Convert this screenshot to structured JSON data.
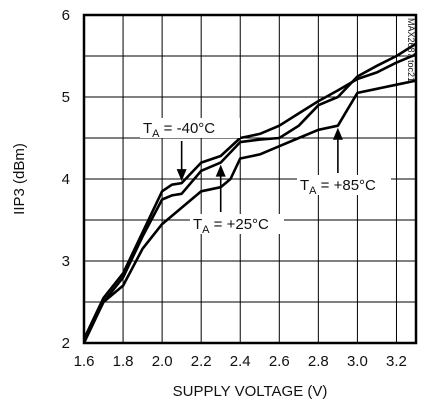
{
  "chart_data": {
    "type": "line",
    "xlabel": "SUPPLY VOLTAGE (V)",
    "ylabel": "IIP3 (dBm)",
    "xlim": [
      1.6,
      3.3
    ],
    "ylim": [
      2,
      6
    ],
    "x_ticks": [
      "1.6",
      "1.8",
      "2.0",
      "2.2",
      "2.4",
      "2.6",
      "2.8",
      "3.0",
      "3.2"
    ],
    "y_ticks": [
      "2",
      "3",
      "4",
      "5",
      "6"
    ],
    "grid": true,
    "watermark": "MAX2687 toc21",
    "series": [
      {
        "x": [
          1.6,
          1.7,
          1.8,
          1.9,
          2.0,
          2.05,
          2.1,
          2.2,
          2.3,
          2.4,
          2.5,
          2.6,
          2.7,
          2.8,
          2.9,
          3.0,
          3.1,
          3.2,
          3.3
        ],
        "y": [
          2.05,
          2.55,
          2.85,
          3.35,
          3.85,
          3.93,
          3.95,
          4.2,
          4.28,
          4.5,
          4.55,
          4.65,
          4.8,
          4.95,
          5.08,
          5.22,
          5.3,
          5.42,
          5.52
        ]
      },
      {
        "x": [
          1.6,
          1.7,
          1.8,
          1.9,
          2.0,
          2.05,
          2.1,
          2.2,
          2.3,
          2.4,
          2.5,
          2.6,
          2.7,
          2.8,
          2.85,
          2.9,
          3.0,
          3.1,
          3.2,
          3.3
        ],
        "y": [
          2.05,
          2.5,
          2.8,
          3.3,
          3.75,
          3.8,
          3.82,
          4.1,
          4.2,
          4.45,
          4.48,
          4.5,
          4.65,
          4.9,
          4.95,
          5.0,
          5.25,
          5.38,
          5.5,
          5.65
        ]
      },
      {
        "x": [
          1.6,
          1.7,
          1.8,
          1.9,
          2.0,
          2.1,
          2.2,
          2.3,
          2.35,
          2.4,
          2.5,
          2.6,
          2.7,
          2.8,
          2.9,
          2.95,
          3.0,
          3.1,
          3.2,
          3.3
        ],
        "y": [
          2.0,
          2.5,
          2.7,
          3.15,
          3.45,
          3.65,
          3.85,
          3.9,
          4.0,
          4.25,
          4.3,
          4.4,
          4.5,
          4.6,
          4.65,
          4.85,
          5.05,
          5.1,
          5.15,
          5.2
        ]
      }
    ],
    "annotations": [
      {
        "label": "T",
        "sub": "A",
        "rest": " = -40°C",
        "arrow_to": [
          2.1,
          3.95
        ]
      },
      {
        "label": "T",
        "sub": "A",
        "rest": " = +25°C",
        "arrow_to": [
          2.3,
          4.2
        ]
      },
      {
        "label": "T",
        "sub": "A",
        "rest": " = +85°C",
        "arrow_to": [
          2.9,
          4.65
        ]
      }
    ]
  }
}
